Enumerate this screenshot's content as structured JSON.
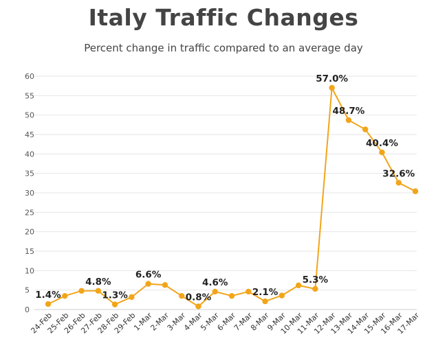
{
  "chart_data": {
    "type": "line",
    "title": "Italy Traffic Changes",
    "subtitle": "Percent change in traffic compared to an average day",
    "xlabel": "",
    "ylabel": "",
    "ylim": [
      0,
      60
    ],
    "yticks": [
      0,
      5,
      10,
      15,
      20,
      25,
      30,
      35,
      40,
      45,
      50,
      55,
      60
    ],
    "grid": true,
    "legend": "none",
    "categories": [
      "24-Feb",
      "25-Feb",
      "26-Feb",
      "27-Feb",
      "28-Feb",
      "29-Feb",
      "1-Mar",
      "2-Mar",
      "3-Mar",
      "4-Mar",
      "5-Mar",
      "6-Mar",
      "7-Mar",
      "8-Mar",
      "9-Mar",
      "10-Mar",
      "11-Mar",
      "12-Mar",
      "13-Mar",
      "14-Mar",
      "15-Mar",
      "16-Mar",
      "17-Mar"
    ],
    "series": [
      {
        "values": [
          1.4,
          3.5,
          4.8,
          4.8,
          1.3,
          3.2,
          6.6,
          6.3,
          3.5,
          0.8,
          4.6,
          3.5,
          4.6,
          2.1,
          3.6,
          6.2,
          5.3,
          57.0,
          48.7,
          46.3,
          40.4,
          32.6,
          30.4
        ],
        "color": "#f2a51a"
      }
    ],
    "data_labels": [
      {
        "index": 0,
        "text": "1.4%"
      },
      {
        "index": 3,
        "text": "4.8%"
      },
      {
        "index": 4,
        "text": "1.3%"
      },
      {
        "index": 6,
        "text": "6.6%"
      },
      {
        "index": 9,
        "text": "0.8%"
      },
      {
        "index": 10,
        "text": "4.6%"
      },
      {
        "index": 13,
        "text": "2.1%"
      },
      {
        "index": 16,
        "text": "5.3%"
      },
      {
        "index": 17,
        "text": "57.0%"
      },
      {
        "index": 18,
        "text": "48.7%"
      },
      {
        "index": 20,
        "text": "40.4%"
      },
      {
        "index": 21,
        "text": "32.6%"
      }
    ]
  }
}
